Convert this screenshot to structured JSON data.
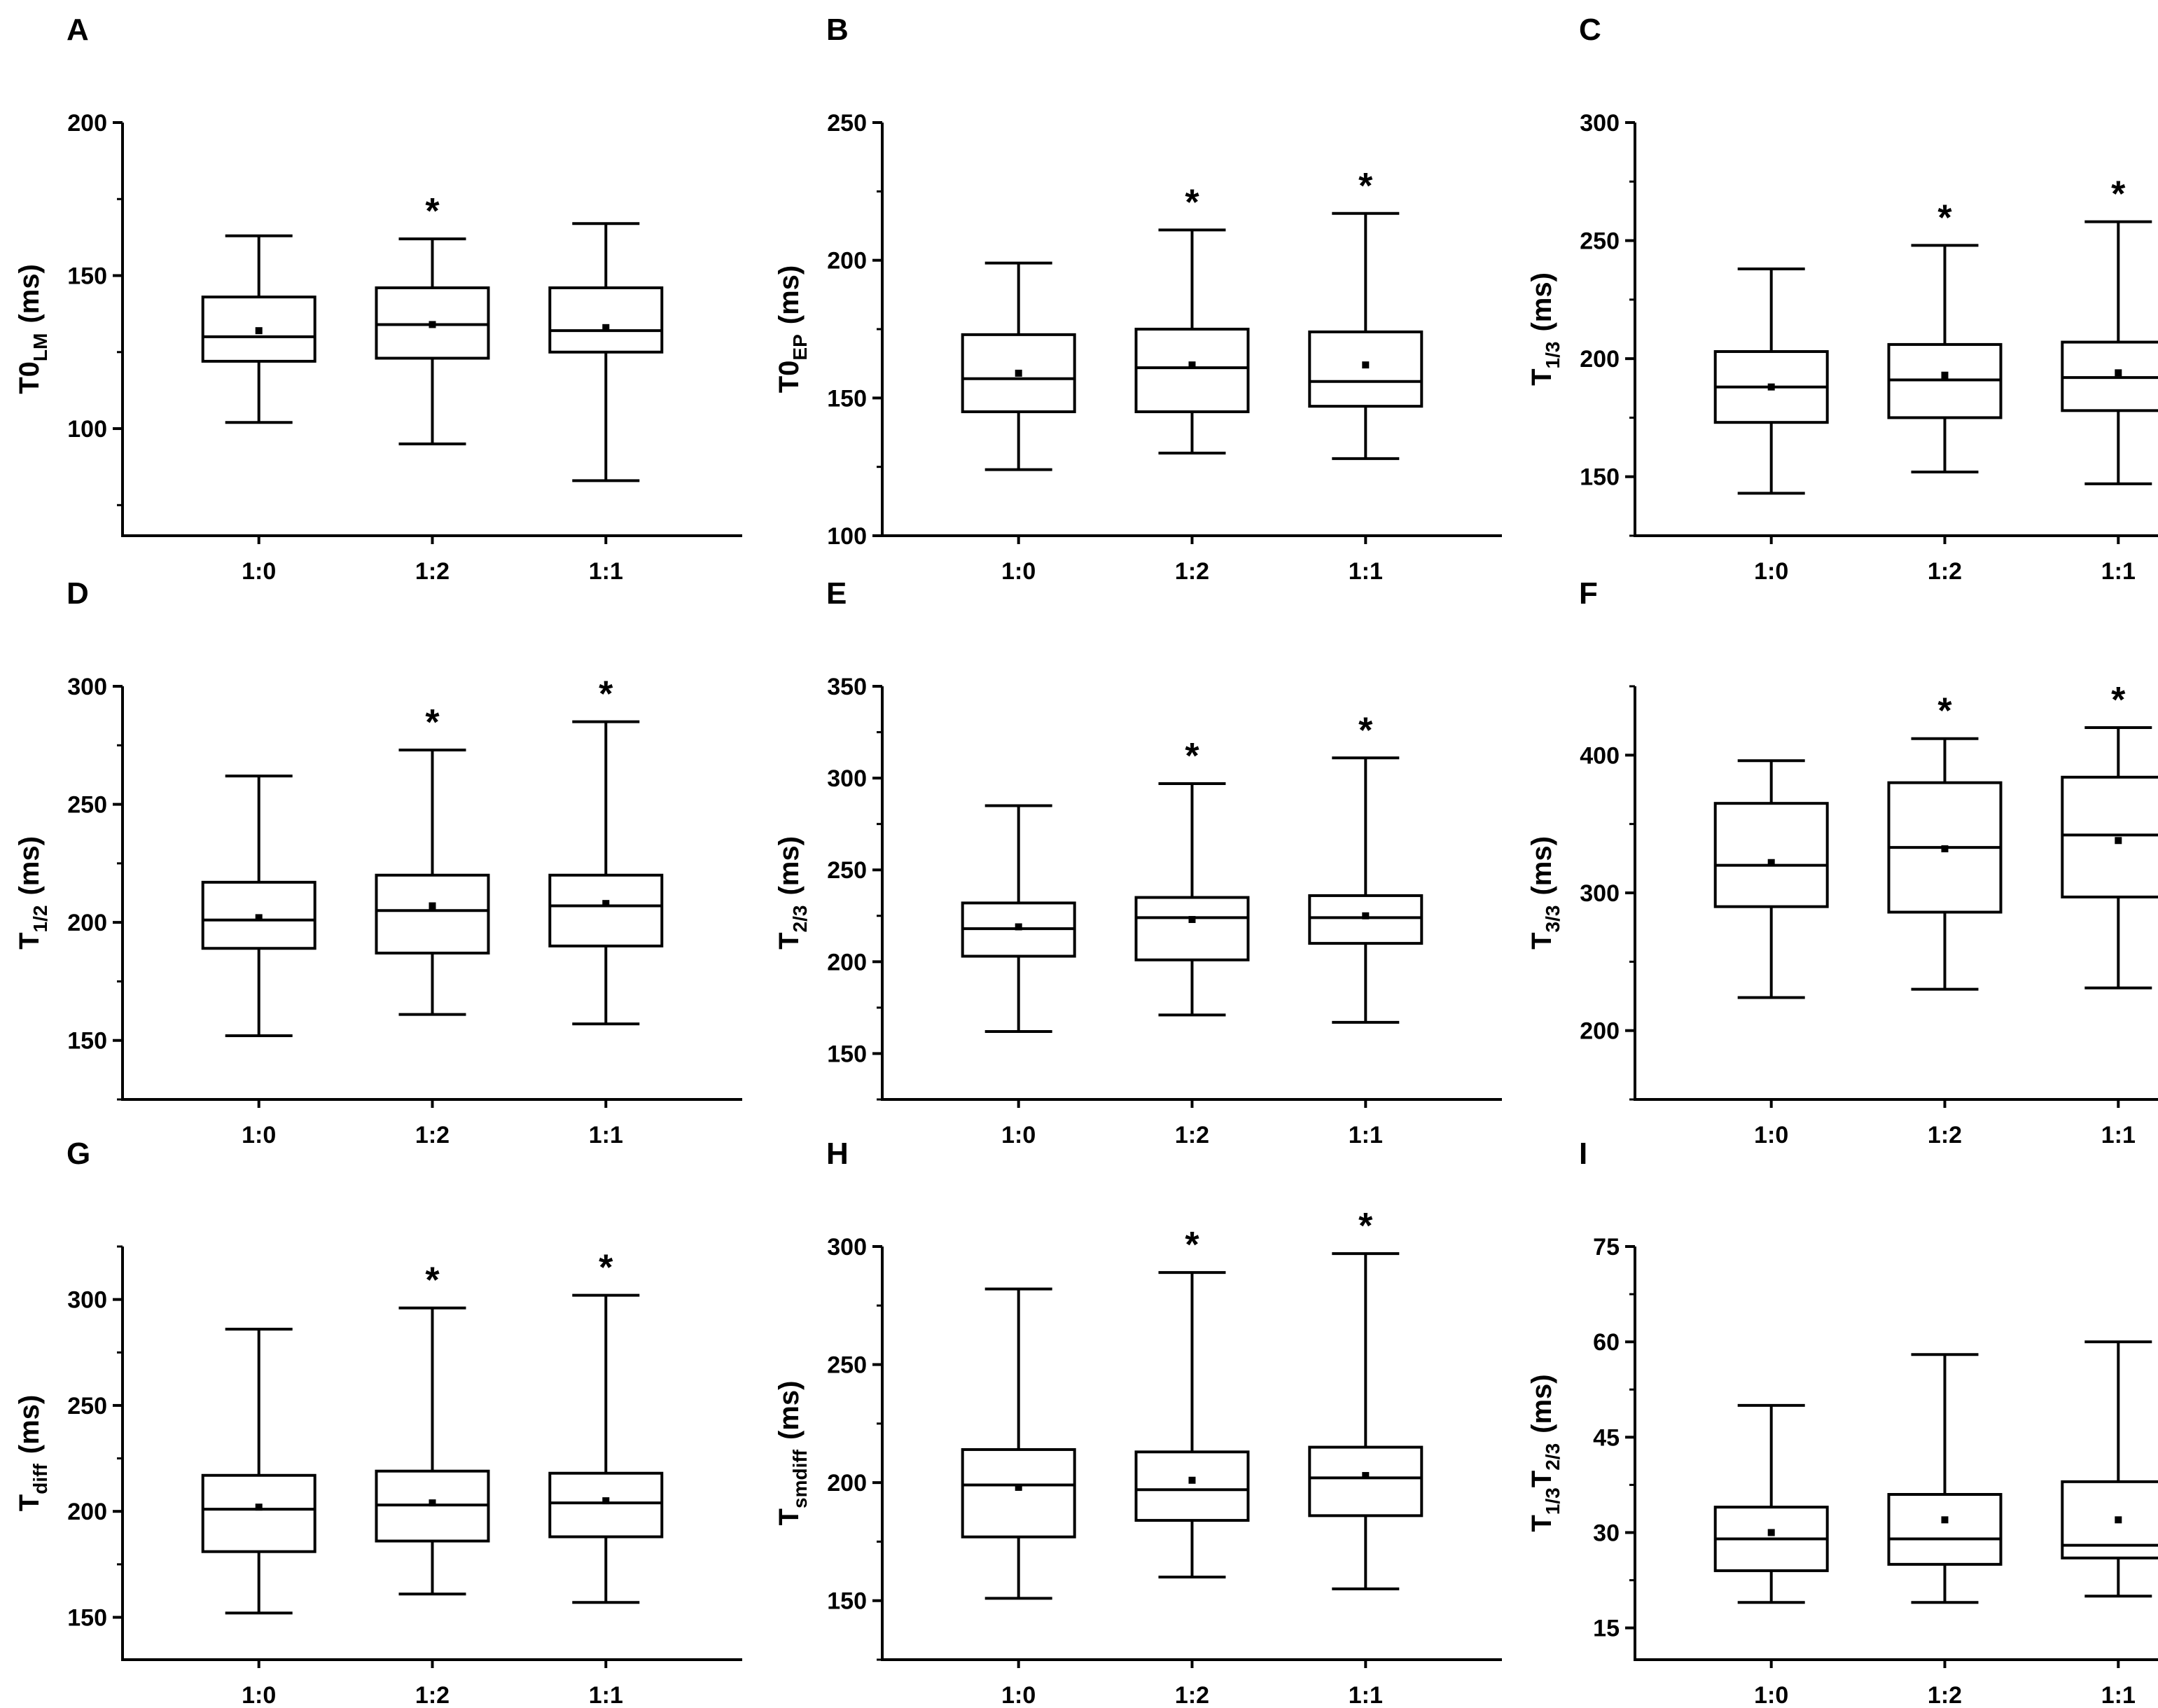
{
  "chart_data": [
    {
      "type": "box",
      "panel_label": "A",
      "ylabel": {
        "main": "T0",
        "sub": "LM",
        "unit": "(ms)"
      },
      "ylim": [
        65,
        200
      ],
      "yticks": [
        100,
        150,
        200
      ],
      "categories": [
        "1:0",
        "1:2",
        "1:1"
      ],
      "boxes": [
        {
          "min": 102,
          "q1": 122,
          "median": 130,
          "q3": 143,
          "max": 163,
          "mean": 132,
          "star": ""
        },
        {
          "min": 95,
          "q1": 123,
          "median": 134,
          "q3": 146,
          "max": 162,
          "mean": 134,
          "star": "*"
        },
        {
          "min": 83,
          "q1": 125,
          "median": 132,
          "q3": 146,
          "max": 167,
          "mean": 133,
          "star": ""
        }
      ]
    },
    {
      "type": "box",
      "panel_label": "B",
      "ylabel": {
        "main": "T0",
        "sub": "EP",
        "unit": "(ms)"
      },
      "ylim": [
        100,
        250
      ],
      "yticks": [
        100,
        150,
        200,
        250
      ],
      "categories": [
        "1:0",
        "1:2",
        "1:1"
      ],
      "boxes": [
        {
          "min": 124,
          "q1": 145,
          "median": 157,
          "q3": 173,
          "max": 199,
          "mean": 159,
          "star": ""
        },
        {
          "min": 130,
          "q1": 145,
          "median": 161,
          "q3": 175,
          "max": 211,
          "mean": 162,
          "star": "*"
        },
        {
          "min": 128,
          "q1": 147,
          "median": 156,
          "q3": 174,
          "max": 217,
          "mean": 162,
          "star": "*"
        }
      ]
    },
    {
      "type": "box",
      "panel_label": "C",
      "ylabel": {
        "main": "T",
        "sub": "1/3",
        "unit": "(ms)"
      },
      "ylim": [
        125,
        300
      ],
      "yticks": [
        150,
        200,
        250,
        300
      ],
      "categories": [
        "1:0",
        "1:2",
        "1:1"
      ],
      "boxes": [
        {
          "min": 143,
          "q1": 173,
          "median": 188,
          "q3": 203,
          "max": 238,
          "mean": 188,
          "star": ""
        },
        {
          "min": 152,
          "q1": 175,
          "median": 191,
          "q3": 206,
          "max": 248,
          "mean": 193,
          "star": "*"
        },
        {
          "min": 147,
          "q1": 178,
          "median": 192,
          "q3": 207,
          "max": 258,
          "mean": 194,
          "star": "*"
        }
      ]
    },
    {
      "type": "box",
      "panel_label": "D",
      "ylabel": {
        "main": "T",
        "sub": "1/2",
        "unit": "(ms)"
      },
      "ylim": [
        125,
        300
      ],
      "yticks": [
        150,
        200,
        250,
        300
      ],
      "categories": [
        "1:0",
        "1:2",
        "1:1"
      ],
      "boxes": [
        {
          "min": 152,
          "q1": 189,
          "median": 201,
          "q3": 217,
          "max": 262,
          "mean": 202,
          "star": ""
        },
        {
          "min": 161,
          "q1": 187,
          "median": 205,
          "q3": 220,
          "max": 273,
          "mean": 207,
          "star": "*"
        },
        {
          "min": 157,
          "q1": 190,
          "median": 207,
          "q3": 220,
          "max": 285,
          "mean": 208,
          "star": "*"
        }
      ]
    },
    {
      "type": "box",
      "panel_label": "E",
      "ylabel": {
        "main": "T",
        "sub": "2/3",
        "unit": "(ms)"
      },
      "ylim": [
        125,
        350
      ],
      "yticks": [
        150,
        200,
        250,
        300,
        350
      ],
      "categories": [
        "1:0",
        "1:2",
        "1:1"
      ],
      "boxes": [
        {
          "min": 162,
          "q1": 203,
          "median": 218,
          "q3": 232,
          "max": 285,
          "mean": 219,
          "star": ""
        },
        {
          "min": 171,
          "q1": 201,
          "median": 224,
          "q3": 235,
          "max": 297,
          "mean": 223,
          "star": "*"
        },
        {
          "min": 167,
          "q1": 210,
          "median": 224,
          "q3": 236,
          "max": 311,
          "mean": 225,
          "star": "*"
        }
      ]
    },
    {
      "type": "box",
      "panel_label": "F",
      "ylabel": {
        "main": "T",
        "sub": "3/3",
        "unit": "(ms)"
      },
      "ylim": [
        150,
        450
      ],
      "yticks": [
        200,
        300,
        400
      ],
      "categories": [
        "1:0",
        "1:2",
        "1:1"
      ],
      "boxes": [
        {
          "min": 224,
          "q1": 290,
          "median": 320,
          "q3": 365,
          "max": 396,
          "mean": 322,
          "star": ""
        },
        {
          "min": 230,
          "q1": 286,
          "median": 333,
          "q3": 380,
          "max": 412,
          "mean": 332,
          "star": "*"
        },
        {
          "min": 231,
          "q1": 297,
          "median": 342,
          "q3": 384,
          "max": 420,
          "mean": 338,
          "star": "*"
        }
      ]
    },
    {
      "type": "box",
      "panel_label": "G",
      "ylabel": {
        "main": "T",
        "sub": "diff",
        "unit": "(ms)"
      },
      "ylim": [
        130,
        325
      ],
      "yticks": [
        150,
        200,
        250,
        300
      ],
      "categories": [
        "1:0",
        "1:2",
        "1:1"
      ],
      "boxes": [
        {
          "min": 152,
          "q1": 181,
          "median": 201,
          "q3": 217,
          "max": 286,
          "mean": 202,
          "star": ""
        },
        {
          "min": 161,
          "q1": 186,
          "median": 203,
          "q3": 219,
          "max": 296,
          "mean": 204,
          "star": "*"
        },
        {
          "min": 157,
          "q1": 188,
          "median": 204,
          "q3": 218,
          "max": 302,
          "mean": 205,
          "star": "*"
        }
      ]
    },
    {
      "type": "box",
      "panel_label": "H",
      "ylabel": {
        "main": "T",
        "sub": "smdiff",
        "unit": "(ms)"
      },
      "ylim": [
        125,
        300
      ],
      "yticks": [
        150,
        200,
        250,
        300
      ],
      "categories": [
        "1:0",
        "1:2",
        "1:1"
      ],
      "boxes": [
        {
          "min": 151,
          "q1": 177,
          "median": 199,
          "q3": 214,
          "max": 282,
          "mean": 198,
          "star": ""
        },
        {
          "min": 160,
          "q1": 184,
          "median": 197,
          "q3": 213,
          "max": 289,
          "mean": 201,
          "star": "*"
        },
        {
          "min": 155,
          "q1": 186,
          "median": 202,
          "q3": 215,
          "max": 297,
          "mean": 203,
          "star": "*"
        }
      ]
    },
    {
      "type": "box",
      "panel_label": "I",
      "ylabel": {
        "main": "T",
        "sub": "1/3",
        "main2": "T",
        "sub2": "2/3",
        "unit": "(ms)"
      },
      "ylim": [
        10,
        75
      ],
      "yticks": [
        15,
        30,
        45,
        60,
        75
      ],
      "categories": [
        "1:0",
        "1:2",
        "1:1"
      ],
      "boxes": [
        {
          "min": 19,
          "q1": 24,
          "median": 29,
          "q3": 34,
          "max": 50,
          "mean": 30,
          "star": ""
        },
        {
          "min": 19,
          "q1": 25,
          "median": 29,
          "q3": 36,
          "max": 58,
          "mean": 32,
          "star": ""
        },
        {
          "min": 20,
          "q1": 26,
          "median": 28,
          "q3": 38,
          "max": 60,
          "mean": 32,
          "star": ""
        }
      ]
    }
  ]
}
